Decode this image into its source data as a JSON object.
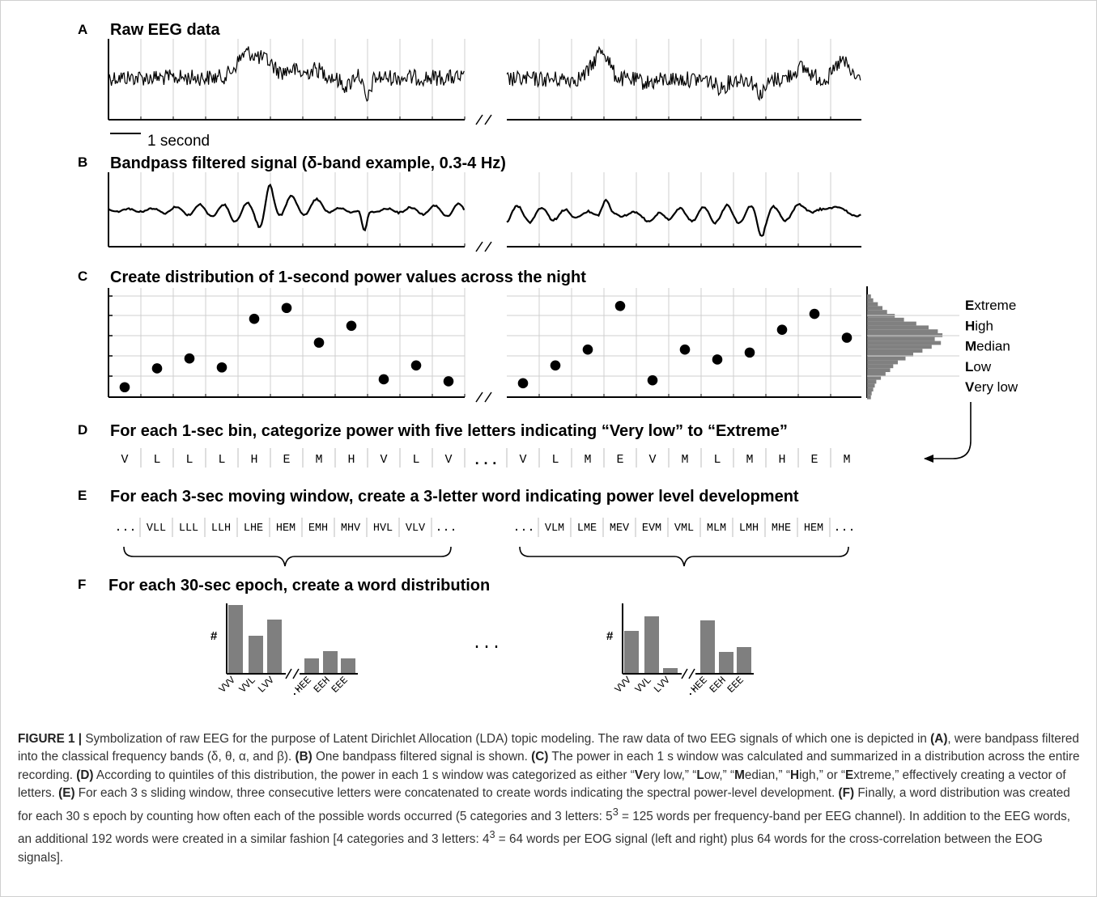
{
  "panels": {
    "A": {
      "letter": "A",
      "title": "Raw EEG data",
      "scale_label": "1 second"
    },
    "B": {
      "letter": "B",
      "title": "Bandpass filtered signal (δ-band example, 0.3-4 Hz)"
    },
    "C": {
      "letter": "C",
      "title": "Create distribution of 1-second power values across the night",
      "levels": [
        {
          "initial": "E",
          "rest": "xtreme"
        },
        {
          "initial": "H",
          "rest": "igh"
        },
        {
          "initial": "M",
          "rest": "edian"
        },
        {
          "initial": "L",
          "rest": "ow"
        },
        {
          "initial": "V",
          "rest": "ery low"
        }
      ],
      "left_levels": [
        0.5,
        1.45,
        1.95,
        1.5,
        3.95,
        4.5,
        2.75,
        3.6,
        0.9,
        1.6,
        0.8
      ],
      "right_levels": [
        0.7,
        1.6,
        2.4,
        4.6,
        0.85,
        2.4,
        1.9,
        2.25,
        3.4,
        4.2,
        3.0
      ]
    },
    "D": {
      "letter": "D",
      "title": "For each 1-sec bin, categorize power with five letters indicating “Very low” to “Extreme”",
      "left_letters": [
        "V",
        "L",
        "L",
        "L",
        "H",
        "E",
        "M",
        "H",
        "V",
        "L",
        "V"
      ],
      "ellipsis": "...",
      "right_letters": [
        "V",
        "L",
        "M",
        "E",
        "V",
        "M",
        "L",
        "M",
        "H",
        "E",
        "M"
      ]
    },
    "E": {
      "letter": "E",
      "title": "For each 3-sec moving window, create a 3-letter word indicating power level development",
      "ellipsis": "...",
      "left_words": [
        "VLL",
        "LLL",
        "LLH",
        "LHE",
        "HEM",
        "EMH",
        "MHV",
        "HVL",
        "VLV"
      ],
      "right_words": [
        "VLM",
        "LME",
        "MEV",
        "EVM",
        "VML",
        "MLM",
        "LMH",
        "MHE",
        "HEM"
      ]
    },
    "F": {
      "letter": "F",
      "title": "For each 30-sec epoch, create a word distribution",
      "y_symbol": "#",
      "middle_ellipsis": "...",
      "x_labels": [
        "VVV",
        "VVL",
        "LVV",
        "EEH",
        "EEE"
      ],
      "x_dots": ".",
      "x_label_hee": "HEE",
      "chart_data": [
        {
          "type": "bar",
          "categories": [
            "VVV",
            "VVL",
            "LVV",
            "HEE",
            "EEH",
            "EEE"
          ],
          "values": [
            85,
            47,
            67,
            19,
            28,
            19
          ]
        },
        {
          "type": "bar",
          "categories": [
            "VVV",
            "VVL",
            "LVV",
            "HEE",
            "EEH",
            "EEE"
          ],
          "values": [
            53,
            71,
            7,
            66,
            27,
            33
          ]
        }
      ]
    }
  },
  "caption": {
    "label": "FIGURE 1 |",
    "parts": [
      {
        "t": " Symbolization of raw EEG for the purpose of Latent Dirichlet Allocation (LDA) topic modeling. The raw data of two EEG signals of which one is depicted in ",
        "b": false
      },
      {
        "t": "(A)",
        "b": true
      },
      {
        "t": ", were bandpass filtered into the classical frequency bands (δ, θ, α, and β). ",
        "b": false
      },
      {
        "t": "(B)",
        "b": true
      },
      {
        "t": " One bandpass filtered signal is shown. ",
        "b": false
      },
      {
        "t": "(C)",
        "b": true
      },
      {
        "t": " The power in each 1 s window was calculated and summarized in a distribution across the entire recording. ",
        "b": false
      },
      {
        "t": "(D)",
        "b": true
      },
      {
        "t": " According to quintiles of this distribution, the power in each 1 s window was categorized as either “",
        "b": false
      },
      {
        "t": "V",
        "b": true
      },
      {
        "t": "ery low,” “",
        "b": false
      },
      {
        "t": "L",
        "b": true
      },
      {
        "t": "ow,” “",
        "b": false
      },
      {
        "t": "M",
        "b": true
      },
      {
        "t": "edian,” “",
        "b": false
      },
      {
        "t": "H",
        "b": true
      },
      {
        "t": "igh,” or “",
        "b": false
      },
      {
        "t": "E",
        "b": true
      },
      {
        "t": "xtreme,” effectively creating a vector of letters. ",
        "b": false
      },
      {
        "t": "(E)",
        "b": true
      },
      {
        "t": " For each 3 s sliding window, three consecutive letters were concatenated to create words indicating the spectral power-level development. ",
        "b": false
      },
      {
        "t": "(F)",
        "b": true
      },
      {
        "t": " Finally, a word distribution was created for each 30 s epoch by counting how often each of the possible words occurred (5 categories and 3 letters: 5",
        "b": false
      },
      {
        "t": "3",
        "sup": true
      },
      {
        "t": " = 125 words per frequency-band per EEG channel). In addition to the EEG words, an additional 192 words were created in a similar fashion [4 categories and 3 letters: 4",
        "b": false
      },
      {
        "t": "3",
        "sup": true
      },
      {
        "t": " = 64 words per EOG signal (left and right) plus 64 words for the cross-correlation between the EOG signals].",
        "b": false
      }
    ]
  }
}
